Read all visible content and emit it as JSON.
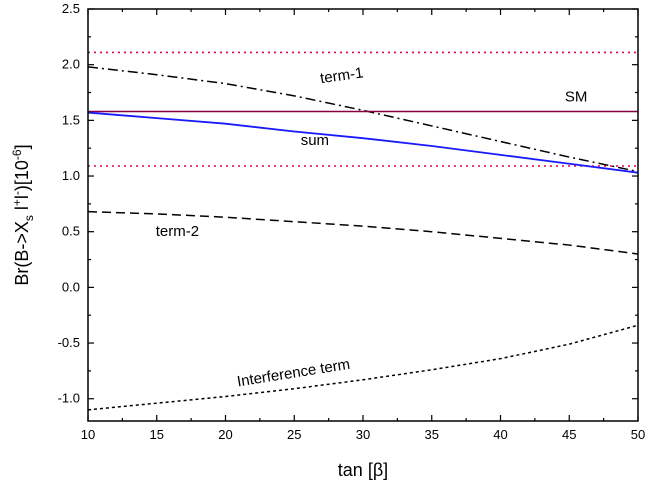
{
  "chart_data": {
    "type": "line",
    "xlabel": "tan [β]",
    "ylabel": {
      "base": "Br(B->X",
      "sub_s": "s",
      "rest": " l",
      "sup_plus": "+",
      "mid": "l",
      "sup_minus": "-",
      "end": ")[10",
      "sup_exp": "-6",
      "close": "]"
    },
    "xlim": [
      10,
      50
    ],
    "ylim": [
      -1.2,
      2.5
    ],
    "xticks": [
      "10",
      "15",
      "20",
      "25",
      "30",
      "35",
      "40",
      "45",
      "50"
    ],
    "yticks": [
      "-1.0",
      "-0.5",
      "0.0",
      "0.5",
      "1.0",
      "1.5",
      "2.0",
      "2.5"
    ],
    "grid": false,
    "series": [
      {
        "name": "term-1",
        "color": "#000000",
        "dash": "dashdot",
        "x": [
          10,
          15,
          20,
          25,
          30,
          35,
          40,
          45,
          50
        ],
        "y": [
          1.98,
          1.91,
          1.83,
          1.72,
          1.59,
          1.45,
          1.31,
          1.17,
          1.04
        ]
      },
      {
        "name": "SM",
        "color": "#800040",
        "dash": "solid",
        "x": [
          10,
          50
        ],
        "y": [
          1.58,
          1.58
        ]
      },
      {
        "name": "sum",
        "color": "#1a1aff",
        "dash": "solid",
        "x": [
          10,
          15,
          20,
          25,
          30,
          35,
          40,
          45,
          50
        ],
        "y": [
          1.57,
          1.52,
          1.47,
          1.4,
          1.34,
          1.27,
          1.19,
          1.11,
          1.03
        ]
      },
      {
        "name": "term-2",
        "color": "#000000",
        "dash": "dash",
        "x": [
          10,
          15,
          20,
          25,
          30,
          35,
          40,
          45,
          50
        ],
        "y": [
          0.68,
          0.66,
          0.63,
          0.59,
          0.55,
          0.5,
          0.44,
          0.38,
          0.3
        ]
      },
      {
        "name": "Interference term",
        "color": "#000000",
        "dash": "dot",
        "x": [
          10,
          15,
          20,
          25,
          30,
          35,
          40,
          45,
          50
        ],
        "y": [
          -1.1,
          -1.04,
          -0.98,
          -0.91,
          -0.83,
          -0.74,
          -0.64,
          -0.51,
          -0.34
        ]
      }
    ],
    "bands": [
      {
        "color": "#e8004a",
        "dash": "dot",
        "y": 2.11
      },
      {
        "color": "#e8004a",
        "dash": "dot",
        "y": 1.09
      }
    ],
    "annotations": [
      {
        "text": "term-1",
        "x": 28.5,
        "y": 1.86,
        "rotate": -8
      },
      {
        "text": "SM",
        "x": 45.5,
        "y": 1.67,
        "rotate": 0
      },
      {
        "text": "sum",
        "x": 26.5,
        "y": 1.28,
        "rotate": 0
      },
      {
        "text": "term-2",
        "x": 16.5,
        "y": 0.46,
        "rotate": 0
      },
      {
        "text": "Interference term",
        "x": 25,
        "y": -0.81,
        "rotate": -9
      }
    ]
  }
}
